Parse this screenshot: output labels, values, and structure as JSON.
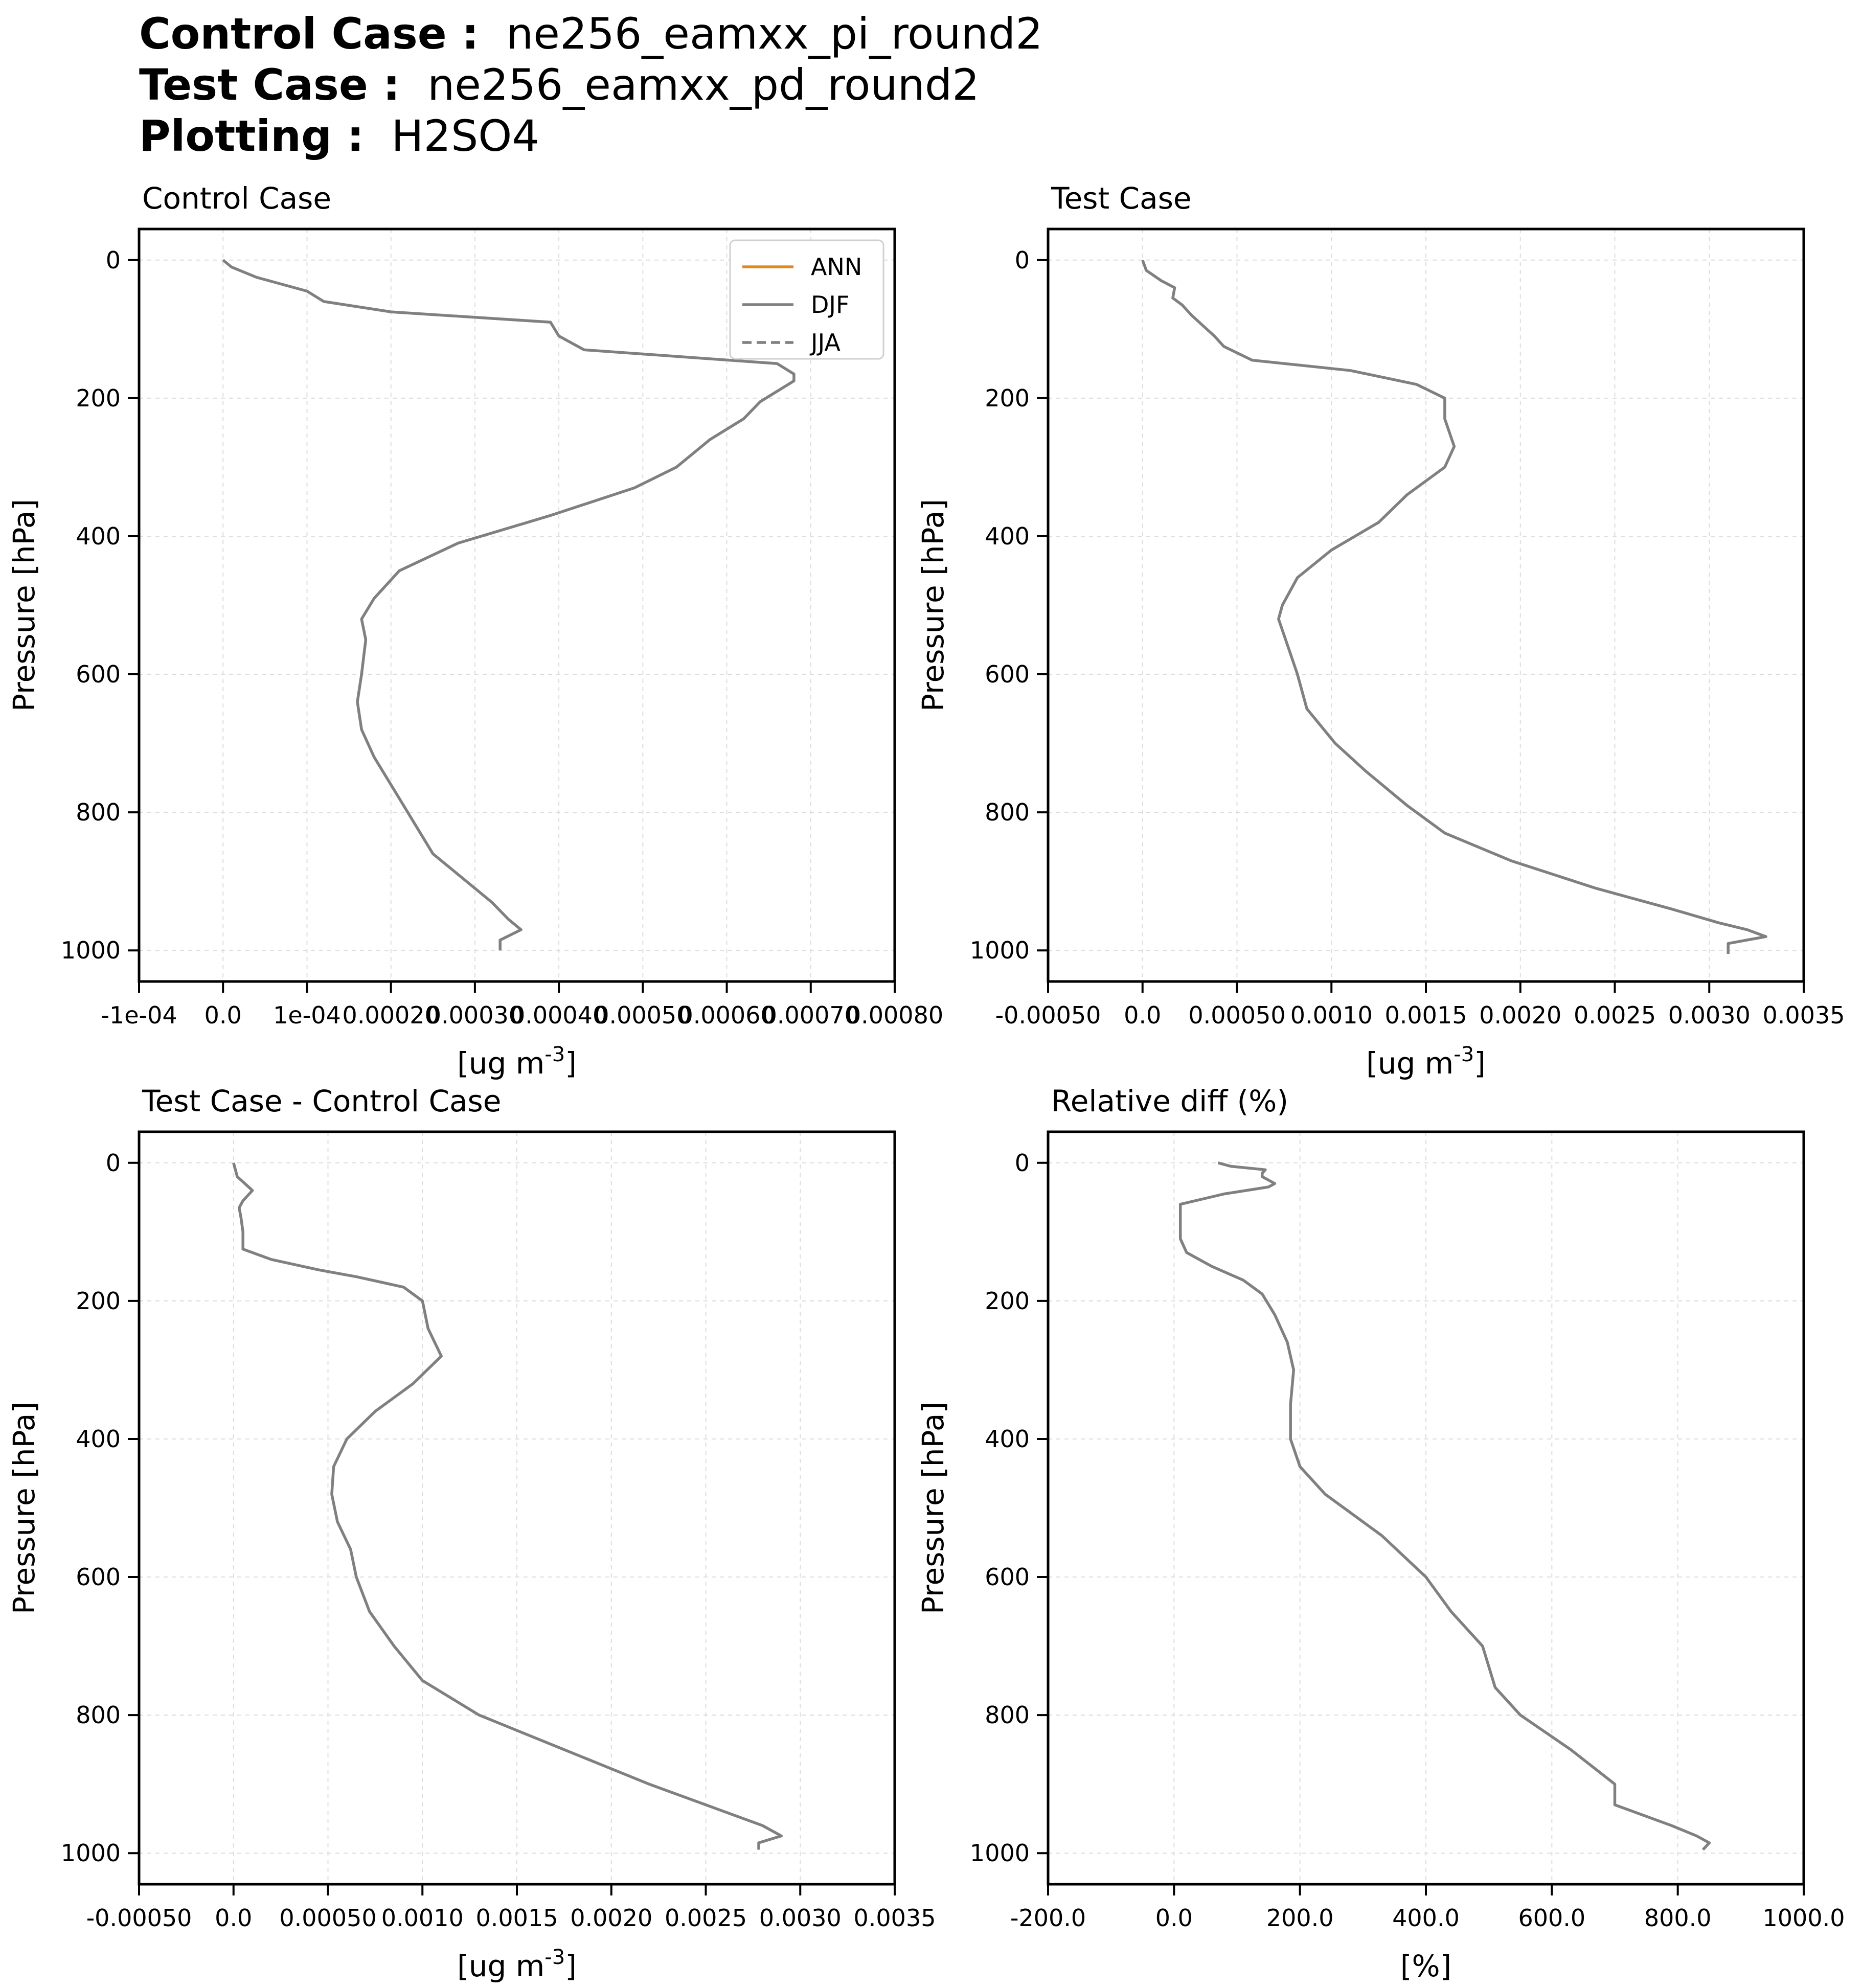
{
  "header": {
    "control_label": "Control Case :",
    "control_value": "ne256_eamxx_pi_round2",
    "test_label": "Test Case :",
    "test_value": "ne256_eamxx_pd_round2",
    "plotting_label": "Plotting :",
    "plotting_value": "H2SO4"
  },
  "colors": {
    "ann": "#e08a1e",
    "djf": "#808080",
    "jja": "#808080",
    "grid": "#dddddd",
    "axis": "#000000"
  },
  "legend": {
    "placement": "upper right of first panel",
    "entries": [
      {
        "label": "ANN",
        "style": "solid",
        "color": "#e08a1e"
      },
      {
        "label": "DJF",
        "style": "solid",
        "color": "#808080"
      },
      {
        "label": "JJA",
        "style": "dashed",
        "color": "#808080"
      }
    ]
  },
  "chart_data": [
    {
      "id": "control",
      "type": "line",
      "title": "Control Case",
      "xlabel": "[ug m^-3]",
      "ylabel": "Pressure [hPa]",
      "xlim": [
        -0.0001,
        0.0008
      ],
      "ylim": [
        1045,
        -45
      ],
      "xticks": [
        -0.0001,
        0,
        0.0001,
        0.0002,
        0.0003,
        0.0004,
        0.0005,
        0.0006,
        0.0007,
        0.0008
      ],
      "xtick_labels": [
        "-1e-04",
        "0.0",
        "1e-04",
        "0.00020",
        "0.00030",
        "0.00040",
        "0.00050",
        "0.00060",
        "0.00070",
        "0.00080"
      ],
      "yticks": [
        0,
        200,
        400,
        600,
        800,
        1000
      ],
      "ytick_labels": [
        "0",
        "200",
        "400",
        "600",
        "800",
        "1000"
      ],
      "series": [
        {
          "name": "DJF",
          "style": "solid",
          "pressure": [
            0,
            10,
            25,
            45,
            60,
            75,
            90,
            110,
            130,
            150,
            165,
            175,
            190,
            205,
            230,
            260,
            300,
            330,
            370,
            410,
            450,
            490,
            520,
            550,
            600,
            640,
            680,
            720,
            760,
            800,
            860,
            900,
            930,
            955,
            970,
            985,
            1000
          ],
          "values": [
            0.0,
            1e-05,
            4e-05,
            0.0001,
            0.00012,
            0.0002,
            0.00039,
            0.0004,
            0.00043,
            0.00066,
            0.00068,
            0.00068,
            0.00066,
            0.00064,
            0.00062,
            0.00058,
            0.00054,
            0.00049,
            0.00039,
            0.00028,
            0.00021,
            0.00018,
            0.000165,
            0.00017,
            0.000165,
            0.00016,
            0.000165,
            0.00018,
            0.0002,
            0.00022,
            0.00025,
            0.00029,
            0.00032,
            0.00034,
            0.000355,
            0.00033,
            0.00033
          ]
        }
      ]
    },
    {
      "id": "test",
      "type": "line",
      "title": "Test Case",
      "xlabel": "[ug m^-3]",
      "ylabel": "Pressure [hPa]",
      "xlim": [
        -0.0005,
        0.0035
      ],
      "ylim": [
        1045,
        -45
      ],
      "xticks": [
        -0.0005,
        0,
        0.0005,
        0.001,
        0.0015,
        0.002,
        0.0025,
        0.003,
        0.0035
      ],
      "xtick_labels": [
        "-0.00050",
        "0.0",
        "0.00050",
        "0.0010",
        "0.0015",
        "0.0020",
        "0.0025",
        "0.0030",
        "0.0035"
      ],
      "yticks": [
        0,
        200,
        400,
        600,
        800,
        1000
      ],
      "ytick_labels": [
        "0",
        "200",
        "400",
        "600",
        "800",
        "1000"
      ],
      "series": [
        {
          "name": "DJF",
          "style": "solid",
          "pressure": [
            0,
            15,
            30,
            40,
            55,
            65,
            80,
            95,
            110,
            125,
            145,
            160,
            180,
            200,
            230,
            270,
            300,
            340,
            380,
            420,
            460,
            500,
            520,
            560,
            600,
            650,
            700,
            740,
            790,
            830,
            870,
            910,
            940,
            960,
            970,
            980,
            990,
            1005
          ],
          "values": [
            0.0,
            2e-05,
            0.0001,
            0.00017,
            0.00016,
            0.00021,
            0.00026,
            0.00032,
            0.00038,
            0.00043,
            0.00058,
            0.0011,
            0.00145,
            0.0016,
            0.0016,
            0.00165,
            0.0016,
            0.0014,
            0.00125,
            0.001,
            0.00082,
            0.00074,
            0.00072,
            0.00077,
            0.00082,
            0.00087,
            0.00102,
            0.00118,
            0.0014,
            0.0016,
            0.00195,
            0.0024,
            0.0028,
            0.00305,
            0.0032,
            0.0033,
            0.0031,
            0.0031
          ]
        }
      ]
    },
    {
      "id": "diff",
      "type": "line",
      "title": "Test Case - Control Case",
      "xlabel": "[ug m^-3]",
      "ylabel": "Pressure [hPa]",
      "xlim": [
        -0.0005,
        0.0035
      ],
      "ylim": [
        1045,
        -45
      ],
      "xticks": [
        -0.0005,
        0,
        0.0005,
        0.001,
        0.0015,
        0.002,
        0.0025,
        0.003,
        0.0035
      ],
      "xtick_labels": [
        "-0.00050",
        "0.0",
        "0.00050",
        "0.0010",
        "0.0015",
        "0.0020",
        "0.0025",
        "0.0030",
        "0.0035"
      ],
      "yticks": [
        0,
        200,
        400,
        600,
        800,
        1000
      ],
      "ytick_labels": [
        "0",
        "200",
        "400",
        "600",
        "800",
        "1000"
      ],
      "series": [
        {
          "name": "DJF",
          "style": "solid",
          "pressure": [
            0,
            20,
            30,
            40,
            55,
            65,
            80,
            100,
            125,
            140,
            155,
            165,
            180,
            200,
            240,
            280,
            320,
            360,
            400,
            440,
            480,
            520,
            560,
            600,
            650,
            700,
            750,
            800,
            850,
            900,
            940,
            960,
            975,
            985,
            995
          ],
          "values": [
            0.0,
            2e-05,
            6e-05,
            0.0001,
            5e-05,
            3e-05,
            4e-05,
            5e-05,
            5e-05,
            0.0002,
            0.00045,
            0.00065,
            0.0009,
            0.001,
            0.00103,
            0.0011,
            0.00095,
            0.00075,
            0.0006,
            0.00053,
            0.00052,
            0.00055,
            0.00062,
            0.00065,
            0.00072,
            0.00085,
            0.001,
            0.0013,
            0.00175,
            0.0022,
            0.0026,
            0.0028,
            0.0029,
            0.00278,
            0.00278
          ]
        }
      ]
    },
    {
      "id": "reldiff",
      "type": "line",
      "title": "Relative diff (%)",
      "xlabel": "[%]",
      "ylabel": "Pressure [hPa]",
      "xlim": [
        -200,
        1000
      ],
      "ylim": [
        1045,
        -45
      ],
      "xticks": [
        -200,
        0,
        200,
        400,
        600,
        800,
        1000
      ],
      "xtick_labels": [
        "-200.0",
        "0.0",
        "200.0",
        "400.0",
        "600.0",
        "800.0",
        "1000.0"
      ],
      "yticks": [
        0,
        200,
        400,
        600,
        800,
        1000
      ],
      "ytick_labels": [
        "0",
        "200",
        "400",
        "600",
        "800",
        "1000"
      ],
      "series": [
        {
          "name": "DJF",
          "style": "solid",
          "pressure": [
            0,
            5,
            10,
            15,
            20,
            25,
            30,
            35,
            45,
            60,
            80,
            110,
            130,
            150,
            170,
            190,
            220,
            260,
            300,
            350,
            400,
            440,
            480,
            540,
            600,
            650,
            700,
            760,
            800,
            850,
            900,
            930,
            960,
            975,
            985,
            995
          ],
          "values": [
            70,
            90,
            145,
            140,
            140,
            150,
            160,
            150,
            80,
            10,
            10,
            10,
            20,
            60,
            110,
            140,
            160,
            180,
            190,
            185,
            185,
            200,
            240,
            330,
            400,
            440,
            490,
            510,
            550,
            630,
            700,
            700,
            790,
            830,
            850,
            840
          ]
        }
      ]
    }
  ]
}
